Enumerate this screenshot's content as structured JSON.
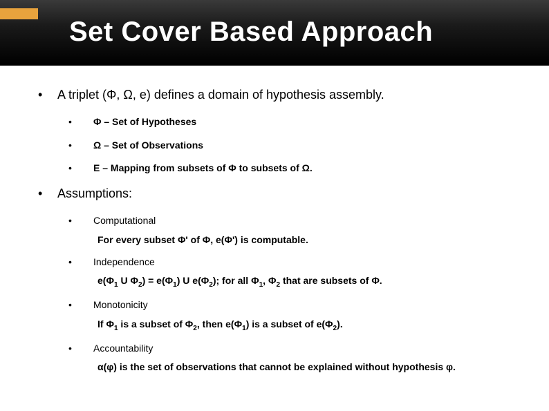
{
  "header": {
    "title": "Set Cover Based Approach",
    "accent_color": "#e8a33d",
    "bg_gradient_top": "#3a3a3a",
    "bg_gradient_bottom": "#000000",
    "title_color": "#ffffff",
    "title_fontsize": 40
  },
  "body": {
    "text_color": "#000000",
    "lvl1_fontsize": 18,
    "lvl2_fontsize": 14,
    "bullets": [
      {
        "text": "A triplet (Φ, Ω, e) defines a domain of hypothesis assembly.",
        "sub": [
          {
            "text": "Φ – Set of Hypotheses"
          },
          {
            "text": "Ω – Set of Observations"
          },
          {
            "text": "E – Mapping from  subsets of Φ to subsets of Ω."
          }
        ]
      },
      {
        "text": "Assumptions:",
        "sub": [
          {
            "text": "Computational",
            "detail_html": "For every subset Φ' of Φ, e(Φ') is computable."
          },
          {
            "text": "Independence",
            "detail_html": "e(Φ<sub>1</sub> U Φ<sub>2</sub>) = e(Φ<sub>1</sub>) U e(Φ<sub>2</sub>); for all Φ<sub>1</sub>, Φ<sub>2</sub> that are subsets of Φ."
          },
          {
            "text": "Monotonicity",
            "detail_html": "If Φ<sub>1</sub> is a subset of Φ<sub>2</sub>, then e(Φ<sub>1</sub>) is a subset of e(Φ<sub>2</sub>)."
          },
          {
            "text": "Accountability",
            "detail_html": "α(φ) is the set of observations that cannot be explained without hypothesis φ."
          }
        ]
      }
    ]
  }
}
